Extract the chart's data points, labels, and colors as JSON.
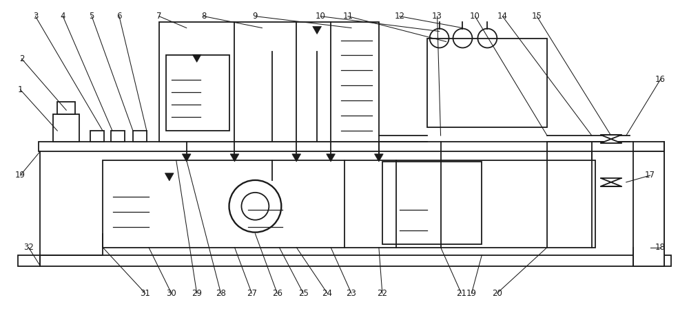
{
  "lc": "#1a1a1a",
  "lw": 1.3,
  "fig_w": 10.0,
  "fig_h": 4.55,
  "dpi": 100
}
